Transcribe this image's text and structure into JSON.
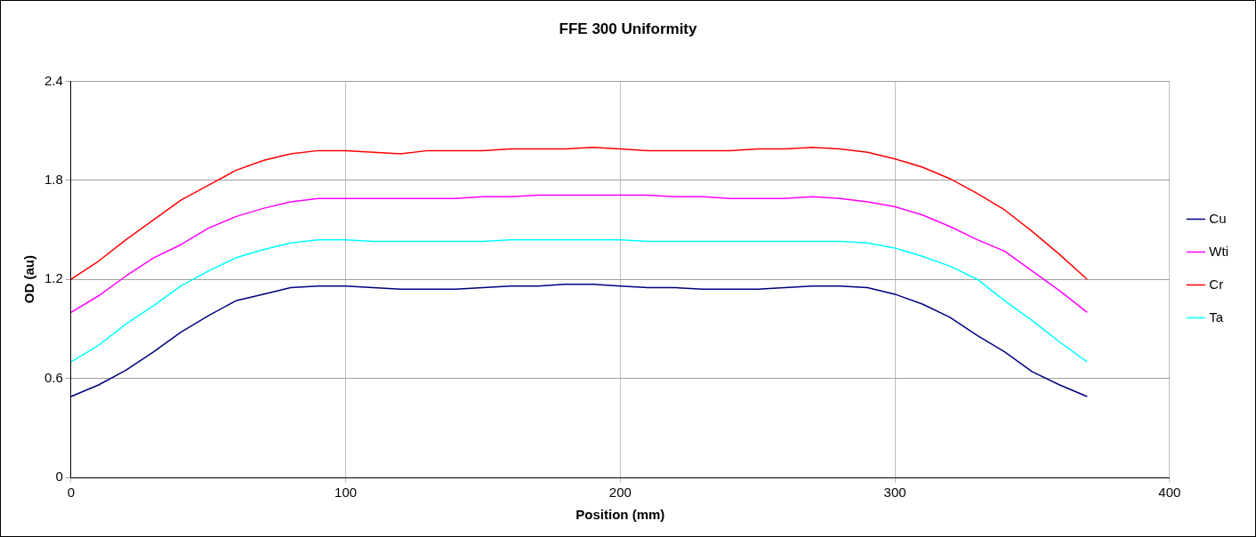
{
  "chart_data": {
    "type": "line",
    "title": "FFE 300 Uniformity",
    "xlabel": "Position (mm)",
    "ylabel": "OD (au)",
    "x": [
      0,
      10,
      20,
      30,
      40,
      50,
      60,
      70,
      80,
      90,
      100,
      110,
      120,
      130,
      140,
      150,
      160,
      170,
      180,
      190,
      200,
      210,
      220,
      230,
      240,
      250,
      260,
      270,
      280,
      290,
      300,
      310,
      320,
      330,
      340,
      350,
      360,
      370
    ],
    "series": [
      {
        "name": "Cu",
        "color": "#000080",
        "values": [
          0.49,
          0.56,
          0.65,
          0.76,
          0.88,
          0.98,
          1.07,
          1.11,
          1.15,
          1.16,
          1.16,
          1.15,
          1.14,
          1.14,
          1.14,
          1.15,
          1.16,
          1.16,
          1.17,
          1.17,
          1.16,
          1.15,
          1.15,
          1.14,
          1.14,
          1.14,
          1.15,
          1.16,
          1.16,
          1.15,
          1.11,
          1.05,
          0.97,
          0.86,
          0.76,
          0.64,
          0.56,
          0.49
        ]
      },
      {
        "name": "Wti",
        "color": "#ff00ff",
        "values": [
          1.0,
          1.1,
          1.22,
          1.33,
          1.41,
          1.51,
          1.58,
          1.63,
          1.67,
          1.69,
          1.69,
          1.69,
          1.69,
          1.69,
          1.69,
          1.7,
          1.7,
          1.71,
          1.71,
          1.71,
          1.71,
          1.71,
          1.7,
          1.7,
          1.69,
          1.69,
          1.69,
          1.7,
          1.69,
          1.67,
          1.64,
          1.59,
          1.52,
          1.44,
          1.37,
          1.25,
          1.13,
          1.0
        ]
      },
      {
        "name": "Cr",
        "color": "#ff0000",
        "values": [
          1.2,
          1.31,
          1.44,
          1.56,
          1.68,
          1.77,
          1.86,
          1.92,
          1.96,
          1.98,
          1.98,
          1.97,
          1.96,
          1.98,
          1.98,
          1.98,
          1.99,
          1.99,
          1.99,
          2.0,
          1.99,
          1.98,
          1.98,
          1.98,
          1.98,
          1.99,
          1.99,
          2.0,
          1.99,
          1.97,
          1.93,
          1.88,
          1.81,
          1.72,
          1.62,
          1.49,
          1.35,
          1.2
        ]
      },
      {
        "name": "Ta",
        "color": "#00ffff",
        "values": [
          0.7,
          0.8,
          0.93,
          1.04,
          1.16,
          1.25,
          1.33,
          1.38,
          1.42,
          1.44,
          1.44,
          1.43,
          1.43,
          1.43,
          1.43,
          1.43,
          1.44,
          1.44,
          1.44,
          1.44,
          1.44,
          1.43,
          1.43,
          1.43,
          1.43,
          1.43,
          1.43,
          1.43,
          1.43,
          1.42,
          1.39,
          1.34,
          1.28,
          1.2,
          1.07,
          0.95,
          0.82,
          0.7
        ]
      }
    ],
    "xlim": [
      0,
      400
    ],
    "xticks": [
      0,
      100,
      200,
      300,
      400
    ],
    "ylim": [
      0,
      2.4
    ],
    "yticks": [
      0,
      0.6,
      1.2,
      1.8,
      2.4
    ],
    "grid": true,
    "legend": "right",
    "marker": "none",
    "line_style": "solid"
  }
}
